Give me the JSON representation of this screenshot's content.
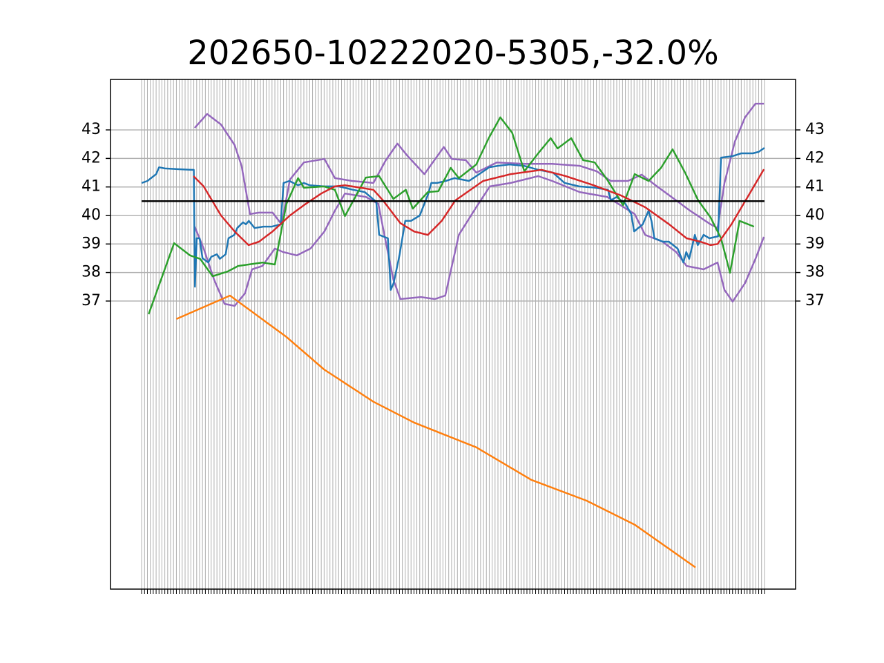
{
  "chart_data": {
    "type": "line",
    "title": "202650-10222020-5305,-32.0%",
    "xlim": [
      -10.75,
      225.75
    ],
    "ylim": [
      26.9,
      44.77
    ],
    "yticks": [
      37,
      38,
      39,
      40,
      41,
      42,
      43
    ],
    "xticks": [
      0,
      1,
      2,
      3,
      4,
      5,
      6,
      7,
      8,
      9,
      10,
      11,
      12,
      13,
      14,
      15,
      16,
      17,
      18,
      19,
      20,
      21,
      22,
      23,
      24,
      25,
      26,
      27,
      28,
      29,
      30,
      31,
      32,
      33,
      34,
      35,
      36,
      37,
      38,
      39,
      40,
      41,
      42,
      43,
      44,
      45,
      46,
      47,
      48,
      49,
      50,
      51,
      52,
      53,
      54,
      55,
      56,
      57,
      58,
      59,
      60,
      61,
      62,
      63,
      64,
      65,
      66,
      67,
      68,
      69,
      70,
      71,
      72,
      73,
      74,
      75,
      76,
      77,
      78,
      79,
      80,
      81,
      82,
      83,
      84,
      85,
      86,
      87,
      88,
      89,
      90,
      91,
      92,
      93,
      94,
      95,
      96,
      97,
      98,
      99,
      100,
      101,
      102,
      103,
      104,
      105,
      106,
      107,
      108,
      109,
      110,
      111,
      112,
      113,
      114,
      115,
      116,
      117,
      118,
      119,
      120,
      121,
      122,
      123,
      124,
      125,
      126,
      127,
      128,
      129,
      130,
      131,
      132,
      133,
      134,
      135,
      136,
      137,
      138,
      139,
      140,
      141,
      142,
      143,
      144,
      145,
      146,
      147,
      148,
      149,
      150,
      151,
      152,
      153,
      154,
      155,
      156,
      157,
      158,
      159,
      160,
      161,
      162,
      163,
      164,
      165,
      166,
      167,
      168,
      169,
      170,
      171,
      172,
      173,
      174,
      175,
      176,
      177,
      178,
      179,
      180,
      181,
      182,
      183,
      184,
      185,
      186,
      187,
      188,
      189,
      190,
      191,
      192,
      193,
      194,
      195,
      196,
      197,
      198,
      199,
      200,
      201,
      202,
      203,
      204,
      205,
      206,
      207,
      208,
      209,
      210,
      211,
      212,
      213,
      214,
      215
    ],
    "grid": true,
    "series": [
      {
        "color": "#9467bd",
        "x": [
          18.3,
          22.6,
          27.4,
          32.1,
          34.5,
          37.4,
          40.5,
          45.2,
          48.3,
          51.2,
          56,
          63.1,
          66.7,
          72.6,
          80,
          84.3,
          88.3,
          91.7,
          97.6,
          104.3,
          107.1,
          111.9,
          115.5,
          122.6,
          132.1,
          141.7,
          151.2,
          157.1,
          161.9,
          167.9,
          172.6,
          177.4,
          184.5,
          189.3,
          196.4,
          198.8,
          201.2,
          204.8,
          208.3,
          211.9,
          214.8
        ],
        "values": [
          43.07,
          43.56,
          43.19,
          42.47,
          41.74,
          40.05,
          40.1,
          40.1,
          39.69,
          41.26,
          41.86,
          41.98,
          41.31,
          41.21,
          41.14,
          41.94,
          42.52,
          42.1,
          41.45,
          42.4,
          41.98,
          41.94,
          41.5,
          41.86,
          41.81,
          41.81,
          41.74,
          41.55,
          41.21,
          41.21,
          41.43,
          41.06,
          40.53,
          40.17,
          39.69,
          39.56,
          41.14,
          42.59,
          43.44,
          43.92,
          43.92
        ]
      },
      {
        "color": "#9467bd",
        "x": [
          18.3,
          21.4,
          25,
          28.6,
          32.1,
          35.7,
          38.1,
          41.7,
          46,
          48.8,
          53.6,
          58.3,
          63.1,
          66.7,
          70.2,
          77.4,
          81.7,
          84.5,
          86.9,
          89.3,
          96.4,
          101.2,
          104.8,
          107.1,
          109.5,
          115.5,
          120.2,
          127.4,
          136.9,
          141.7,
          151.2,
          160.7,
          170.2,
          173.8,
          179.8,
          184.5,
          188.1,
          194,
          198.8,
          201.2,
          204,
          208.3,
          211.9,
          214.8
        ],
        "values": [
          39.61,
          38.84,
          37.75,
          36.9,
          36.83,
          37.27,
          38.11,
          38.23,
          38.84,
          38.72,
          38.6,
          38.84,
          39.44,
          40.17,
          40.77,
          40.65,
          40.41,
          38.96,
          37.75,
          37.07,
          37.14,
          37.07,
          37.19,
          38.23,
          39.32,
          40.29,
          41.02,
          41.14,
          41.38,
          41.21,
          40.82,
          40.65,
          40.05,
          39.32,
          39.08,
          38.72,
          38.23,
          38.11,
          38.35,
          37.39,
          36.98,
          37.63,
          38.48,
          39.25
        ]
      },
      {
        "color": "#1f77b4",
        "x": [
          0,
          2,
          5,
          6,
          8,
          17,
          18,
          18.4,
          19,
          20,
          21,
          23,
          24,
          26,
          27,
          29,
          30,
          32,
          33,
          35,
          36,
          37,
          39,
          42,
          45,
          48,
          49,
          51,
          54,
          56,
          58,
          63,
          68,
          73,
          77,
          81,
          82,
          85,
          86,
          87,
          89,
          91,
          93,
          96,
          99,
          100,
          102,
          105,
          108,
          113,
          118,
          120,
          123,
          127,
          132,
          137,
          142,
          146,
          151,
          156,
          161,
          162,
          164,
          167,
          169,
          170,
          173,
          175,
          176,
          177,
          180,
          182,
          185,
          187,
          188,
          189,
          191,
          192,
          194,
          196,
          199,
          200,
          204,
          207,
          211,
          213,
          215
        ],
        "values": [
          41.14,
          41.21,
          41.45,
          41.69,
          41.65,
          41.6,
          41.6,
          37.5,
          39.2,
          39.2,
          38.5,
          38.35,
          38.55,
          38.64,
          38.48,
          38.64,
          39.2,
          39.32,
          39.56,
          39.76,
          39.69,
          39.81,
          39.56,
          39.61,
          39.61,
          39.69,
          41.14,
          41.21,
          41.06,
          41.14,
          41.06,
          41.02,
          41.02,
          40.9,
          40.82,
          40.48,
          39.32,
          39.2,
          37.39,
          37.63,
          38.6,
          39.81,
          39.81,
          40.0,
          40.77,
          41.14,
          41.14,
          41.21,
          41.31,
          41.21,
          41.55,
          41.69,
          41.74,
          41.79,
          41.74,
          41.6,
          41.5,
          41.14,
          41.02,
          40.98,
          40.9,
          40.53,
          40.65,
          40.41,
          40.05,
          39.44,
          39.69,
          40.17,
          39.81,
          39.2,
          39.08,
          39.08,
          38.84,
          38.35,
          38.72,
          38.48,
          39.32,
          38.96,
          39.32,
          39.2,
          39.27,
          42.03,
          42.08,
          42.18,
          42.18,
          42.23,
          42.37
        ]
      },
      {
        "color": "#ff7f0e",
        "x": [
          12,
          30.5,
          50,
          63,
          80,
          94,
          115.5,
          134.5,
          153.6,
          170.2,
          191.2
        ],
        "values": [
          36.37,
          37.19,
          35.74,
          34.6,
          33.47,
          32.74,
          31.87,
          30.73,
          30.0,
          29.16,
          27.66
        ]
      },
      {
        "color": "#2ca02c",
        "x": [
          2.4,
          11.2,
          16.7,
          20.2,
          24.5,
          29.8,
          33.3,
          41.7,
          46,
          50,
          54,
          56,
          63,
          66.7,
          70.2,
          77.4,
          82,
          86.9,
          91.2,
          93.6,
          98.8,
          102.4,
          106.7,
          109.5,
          115.5,
          119.8,
          123.8,
          127.9,
          132.1,
          136.9,
          141.2,
          143.6,
          148.3,
          152.4,
          156.4,
          160.7,
          166.2,
          170.2,
          175,
          179.3,
          183.3,
          187.6,
          192.1,
          196.4,
          200,
          203.1,
          206.4,
          211.4
        ],
        "values": [
          36.54,
          39.03,
          38.6,
          38.48,
          37.87,
          38.04,
          38.23,
          38.35,
          38.28,
          40.41,
          41.31,
          40.97,
          41.02,
          40.9,
          39.98,
          41.33,
          41.38,
          40.58,
          40.9,
          40.24,
          40.82,
          40.85,
          41.67,
          41.31,
          41.79,
          42.71,
          43.44,
          42.9,
          41.55,
          42.18,
          42.71,
          42.35,
          42.71,
          41.94,
          41.86,
          41.26,
          40.36,
          41.45,
          41.21,
          41.67,
          42.32,
          41.5,
          40.53,
          39.93,
          39.2,
          37.99,
          39.81,
          39.61
        ]
      },
      {
        "color": "#d62728",
        "x": [
          17.9,
          21.4,
          27.4,
          32.1,
          36.9,
          40.5,
          45.2,
          51.2,
          56,
          62,
          66.7,
          70.2,
          80,
          83.3,
          89.3,
          94,
          98.8,
          103.6,
          108.3,
          117.9,
          127.4,
          138.1,
          146.4,
          156,
          165.5,
          173.8,
          182.1,
          188.1,
          192.9,
          196.4,
          198.8,
          203.6,
          209.5,
          214.8
        ],
        "values": [
          41.38,
          41.02,
          40.0,
          39.44,
          38.96,
          39.08,
          39.44,
          40.0,
          40.36,
          40.77,
          41.02,
          41.06,
          40.9,
          40.53,
          39.73,
          39.44,
          39.32,
          39.81,
          40.53,
          41.21,
          41.45,
          41.6,
          41.38,
          41.06,
          40.7,
          40.29,
          39.69,
          39.2,
          39.08,
          38.96,
          39.0,
          39.69,
          40.7,
          41.62
        ]
      },
      {
        "color": "#000000",
        "x": [
          0,
          215
        ],
        "values": [
          40.5,
          40.5
        ]
      }
    ]
  }
}
